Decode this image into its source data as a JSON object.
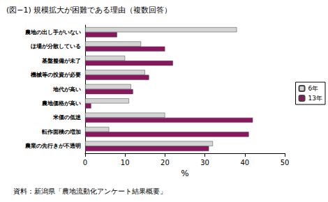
{
  "chart_data": {
    "type": "bar",
    "orientation": "horizontal",
    "title": "(図−1) 規模拡大が困難である理由（複数回答）",
    "xlabel": "%",
    "source": "資料：新潟県「農地流動化アンケート結果概要」",
    "categories": [
      "農地の出し手がいない",
      "ほ場が分散している",
      "基盤整備が未了",
      "機械等の投資が必要",
      "地代が高い",
      "農地価格が高い",
      "米価の低迷",
      "転作面積の増加",
      "農業の先行きが不透明"
    ],
    "series": [
      {
        "name": "6年",
        "color": "#d4d4d4",
        "values": [
          38,
          14,
          10,
          15,
          11.5,
          11,
          20,
          6,
          32
        ]
      },
      {
        "name": "13年",
        "color": "#8b1660",
        "values": [
          8,
          20,
          22,
          16,
          12,
          1.5,
          42,
          41,
          31
        ]
      }
    ],
    "xlim": [
      0,
      50
    ],
    "xticks": [
      0,
      10,
      20,
      30,
      40,
      50
    ],
    "grid": false,
    "legend": "right"
  }
}
